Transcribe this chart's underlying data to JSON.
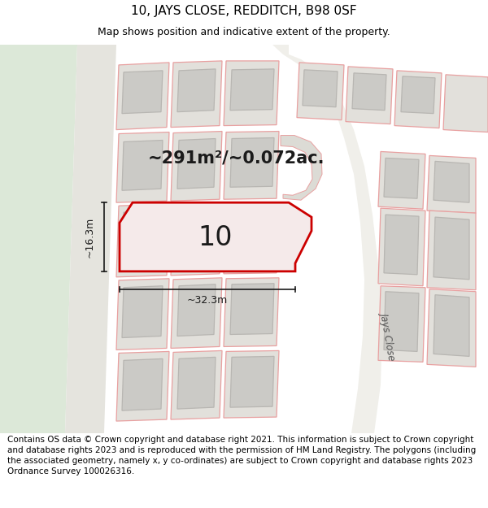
{
  "title_line1": "10, JAYS CLOSE, REDDITCH, B98 0SF",
  "title_line2": "Map shows position and indicative extent of the property.",
  "footer_text": "Contains OS data © Crown copyright and database right 2021. This information is subject to Crown copyright and database rights 2023 and is reproduced with the permission of HM Land Registry. The polygons (including the associated geometry, namely x, y co-ordinates) are subject to Crown copyright and database rights 2023 Ordnance Survey 100026316.",
  "area_label": "~291m²/~0.072ac.",
  "number_label": "10",
  "width_label": "~32.3m",
  "height_label": "~16.3m",
  "street_label": "Jays Close",
  "map_bg": "#edece7",
  "highlight_color": "#cc0000",
  "green_bg": "#dce8d8",
  "plot_fill": "#e2e0db",
  "building_fill": "#cbcac6",
  "highlight_fill": "#f5eaea",
  "road_fill": "#f0efea",
  "pink_edge": "#e8a0a0",
  "gray_edge": "#b8b6b2",
  "title_fontsize": 11,
  "subtitle_fontsize": 9,
  "footer_fontsize": 7.5,
  "area_fontsize": 15,
  "number_fontsize": 24,
  "dim_fontsize": 9
}
